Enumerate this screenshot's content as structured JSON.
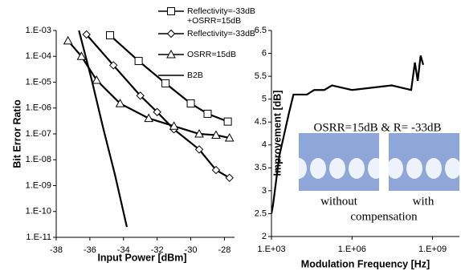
{
  "chart_data": [
    {
      "type": "line",
      "xlabel": "Input Power [dBm]",
      "ylabel": "Bit Error Ratio",
      "ylog": true,
      "xlim": [
        -38,
        -27.4
      ],
      "xticks": [
        -38,
        -36,
        -34,
        -32,
        -30,
        -28
      ],
      "ylim": [
        1e-11,
        0.001
      ],
      "yticks": [
        {
          "value": 1e-11,
          "label": "1.E-11"
        },
        {
          "value": 1e-10,
          "label": "1.E-10"
        },
        {
          "value": 1e-09,
          "label": "1.E-09"
        },
        {
          "value": 1e-08,
          "label": "1.E-08"
        },
        {
          "value": 1e-07,
          "label": "1.E-07"
        },
        {
          "value": 1e-06,
          "label": "1.E-06"
        },
        {
          "value": 1e-05,
          "label": "1.E-05"
        },
        {
          "value": 0.0001,
          "label": "1.E-04"
        },
        {
          "value": 0.001,
          "label": "1.E-03"
        }
      ],
      "series": [
        {
          "name": "Reflectivity=-33dB +OSRR=15dB",
          "color": "#000000",
          "marker": "square",
          "x": [
            -34.8,
            -33.1,
            -31.5,
            -30,
            -29,
            -27.8
          ],
          "values": [
            0.00065,
            6.6e-05,
            9e-06,
            1.5e-06,
            6e-07,
            3e-07
          ]
        },
        {
          "name": "Reflectivity=-33dB",
          "color": "#000000",
          "marker": "diamond",
          "x": [
            -36.2,
            -34.6,
            -33,
            -32,
            -31,
            -29.5,
            -28.5,
            -27.7
          ],
          "values": [
            0.0007,
            4.5e-05,
            3e-06,
            7e-07,
            1.5e-07,
            2.5e-08,
            4e-09,
            2e-09
          ]
        },
        {
          "name": "OSRR=15dB",
          "color": "#000000",
          "marker": "triangle",
          "x": [
            -37.3,
            -36.5,
            -35.6,
            -34.2,
            -32.5,
            -31,
            -29.5,
            -28.5,
            -27.7
          ],
          "values": [
            0.0004,
            0.0001,
            1.2e-05,
            1.5e-06,
            4e-07,
            2e-07,
            1e-07,
            9e-08,
            7e-08
          ]
        },
        {
          "name": "B2B",
          "color": "#000000",
          "marker": "none",
          "x": [
            -36.65,
            -35.9,
            -35.2,
            -34.5,
            -33.8
          ],
          "values": [
            0.001,
            1.3e-05,
            1.6e-07,
            2.5e-09,
            2.5e-11
          ]
        }
      ]
    },
    {
      "type": "line",
      "xlabel": "Modulation Frequency [Hz]",
      "ylabel": "Improvement [dB]",
      "xlog": true,
      "xlim": [
        1000,
        10000000000.0
      ],
      "xticks": [
        {
          "value": 1000,
          "label": "1.E+03"
        },
        {
          "value": 1000000,
          "label": "1.E+06"
        },
        {
          "value": 1000000000,
          "label": "1.E+09"
        }
      ],
      "ylim": [
        2,
        6.5
      ],
      "yticks": [
        2,
        2.5,
        3,
        3.5,
        4,
        4.5,
        5,
        5.5,
        6,
        6.5
      ],
      "annotations": [
        "OSRR=15dB & R= -33dB",
        "without",
        "compensation",
        "with"
      ],
      "series": [
        {
          "color": "#000000",
          "marker": "none",
          "x": [
            1000,
            1150,
            1950,
            4500,
            6600,
            21000,
            39000,
            93000,
            180000,
            1000000,
            30000000,
            160000000,
            220000000,
            280000000,
            360000000,
            450000000
          ],
          "values": [
            2.5,
            2.7,
            3.75,
            4.7,
            5.1,
            5.1,
            5.2,
            5.2,
            5.3,
            5.2,
            5.3,
            5.2,
            5.8,
            5.4,
            5.95,
            5.75
          ]
        }
      ]
    }
  ]
}
